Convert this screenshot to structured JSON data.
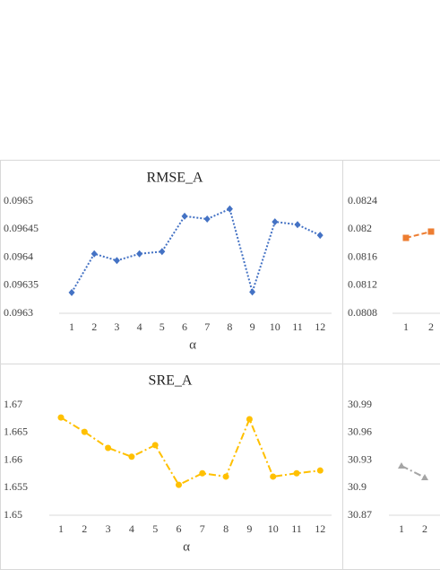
{
  "chart_data": [
    {
      "type": "line",
      "title": "RMSE_A",
      "x_label": "α",
      "categories": [
        "1",
        "2",
        "3",
        "4",
        "5",
        "6",
        "7",
        "8",
        "9",
        "10",
        "11",
        "12"
      ],
      "series": [
        {
          "color": "#4472c4",
          "marker": "diamond",
          "dash": "2 2",
          "values": [
            0.096337,
            0.096406,
            0.096394,
            0.096406,
            0.09641,
            0.096473,
            0.096468,
            0.096486,
            0.096338,
            0.096463,
            0.096458,
            0.096439
          ]
        }
      ],
      "ylim": [
        0.0963,
        0.0965
      ],
      "yticks": [
        0.0963,
        0.09635,
        0.0964,
        0.09645,
        0.0965
      ]
    },
    {
      "type": "line",
      "title": "SRE_A",
      "x_label": "α",
      "categories": [
        "1",
        "2",
        "3",
        "4",
        "5",
        "6",
        "7",
        "8",
        "9",
        "10",
        "11",
        "12"
      ],
      "series": [
        {
          "color": "#ffc000",
          "marker": "circle",
          "dash": "8 3 2 3",
          "values": [
            1.6677,
            1.6651,
            1.6622,
            1.6606,
            1.6627,
            1.6555,
            1.6576,
            1.657,
            1.6674,
            1.657,
            1.6576,
            1.6581
          ]
        }
      ],
      "ylim": [
        1.65,
        1.67
      ],
      "yticks": [
        1.65,
        1.655,
        1.66,
        1.665,
        1.67
      ]
    },
    {
      "type": "line",
      "categories": [
        "1",
        "2"
      ],
      "series": [
        {
          "color": "#ed7d31",
          "marker": "square",
          "dash": "6 3",
          "values": [
            0.081875,
            0.081965
          ]
        }
      ],
      "ylim": [
        0.0808,
        0.0824
      ],
      "yticks": [
        0.0808,
        0.0812,
        0.0816,
        0.082,
        0.0824
      ]
    },
    {
      "type": "line",
      "categories": [
        "1",
        "2"
      ],
      "series": [
        {
          "color": "#a5a5a5",
          "marker": "triangle",
          "dash": "8 3 2 3",
          "values": [
            30.9237,
            30.911
          ]
        }
      ],
      "ylim": [
        30.87,
        30.99
      ],
      "yticks": [
        30.87,
        30.9,
        30.93,
        30.96,
        30.99
      ]
    }
  ]
}
